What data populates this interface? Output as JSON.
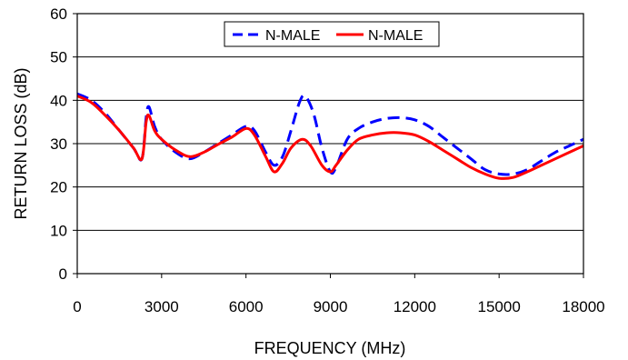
{
  "chart_data": {
    "type": "line",
    "title": "",
    "xlabel": "FREQUENCY (MHz)",
    "ylabel": "RETURN LOSS (dB)",
    "xlim": [
      0,
      18000
    ],
    "ylim": [
      0,
      60
    ],
    "xticks": [
      0,
      3000,
      6000,
      9000,
      12000,
      15000,
      18000
    ],
    "xtick_labels": [
      "0",
      "3000",
      "6000",
      "9000",
      "12000",
      "15000",
      "18000"
    ],
    "yticks": [
      0,
      10,
      20,
      30,
      40,
      50,
      60
    ],
    "ytick_labels": [
      "0",
      "10",
      "20",
      "30",
      "40",
      "50",
      "60"
    ],
    "grid": "horizontal",
    "legend_position": "top-center",
    "series": [
      {
        "name": "N-MALE",
        "color": "#0000ff",
        "style": "dashed",
        "x": [
          0,
          500,
          1000,
          1500,
          2000,
          2300,
          2450,
          2550,
          2750,
          3000,
          3500,
          4000,
          4500,
          5000,
          5500,
          6000,
          6300,
          6700,
          7000,
          7300,
          7600,
          7900,
          8100,
          8400,
          8700,
          9000,
          9200,
          9600,
          10000,
          10500,
          11000,
          11500,
          12000,
          12500,
          13000,
          13500,
          14000,
          14500,
          15000,
          15500,
          16000,
          16500,
          17000,
          17500,
          18000
        ],
        "y": [
          41.5,
          40,
          37,
          33,
          29,
          26.5,
          36,
          38.5,
          34,
          31,
          28,
          26.5,
          28,
          30,
          32,
          34,
          33,
          28,
          25,
          27,
          33,
          39.5,
          41,
          37,
          29,
          23.5,
          24.5,
          31,
          33.5,
          35,
          35.8,
          36,
          35.5,
          34,
          31.5,
          29,
          26.5,
          24,
          23,
          23,
          24,
          26,
          28,
          29.5,
          31
        ]
      },
      {
        "name": "N-MALE",
        "color": "#ff0000",
        "style": "solid",
        "x": [
          0,
          500,
          1000,
          1500,
          2000,
          2300,
          2450,
          2550,
          2750,
          3000,
          3500,
          4000,
          4500,
          5000,
          5500,
          6000,
          6300,
          6700,
          7000,
          7300,
          7600,
          8000,
          8300,
          8700,
          9000,
          9200,
          9600,
          10000,
          10500,
          11000,
          11500,
          12000,
          12500,
          13000,
          13500,
          14000,
          14500,
          15000,
          15500,
          16000,
          16500,
          17000,
          17500,
          18000
        ],
        "y": [
          41,
          39.5,
          36.5,
          33,
          29,
          26.5,
          35,
          36.5,
          33,
          31,
          28.5,
          27,
          28,
          29.8,
          31.5,
          33.5,
          32,
          27,
          23.5,
          25.5,
          29,
          31,
          29.5,
          25,
          23.5,
          25,
          28.5,
          31,
          32,
          32.5,
          32.5,
          32,
          30.5,
          28.5,
          26.5,
          24.5,
          23,
          22,
          22.2,
          23.5,
          25,
          26.5,
          28,
          29.5
        ]
      }
    ]
  }
}
